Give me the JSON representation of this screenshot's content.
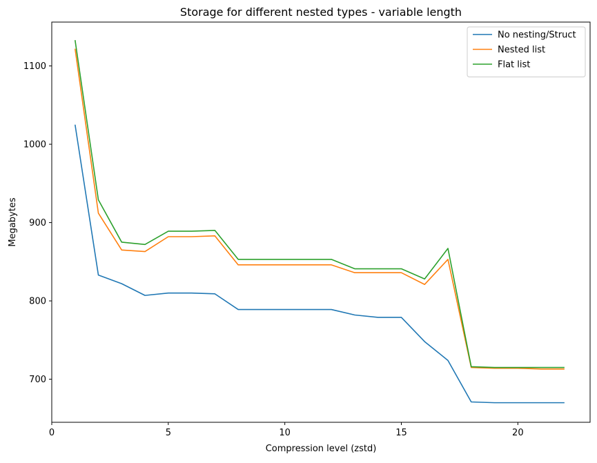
{
  "chart_data": {
    "type": "line",
    "title": "Storage for different nested types - variable length",
    "xlabel": "Compression level (zstd)",
    "ylabel": "Megabytes",
    "xlim": [
      0,
      23.1
    ],
    "ylim": [
      645,
      1156
    ],
    "x_ticks": [
      0,
      5,
      10,
      15,
      20
    ],
    "y_ticks": [
      700,
      800,
      900,
      1000,
      1100
    ],
    "grid": false,
    "legend_position": "top-right",
    "x": [
      1,
      2,
      3,
      4,
      5,
      6,
      7,
      8,
      9,
      10,
      11,
      12,
      13,
      14,
      15,
      16,
      17,
      18,
      19,
      20,
      21,
      22
    ],
    "series": [
      {
        "name": "No nesting/Struct",
        "color": "#1f77b4",
        "values": [
          1025,
          833,
          822,
          807,
          810,
          810,
          809,
          789,
          789,
          789,
          789,
          789,
          782,
          779,
          779,
          748,
          724,
          671,
          670,
          670,
          670,
          670
        ]
      },
      {
        "name": "Nested list",
        "color": "#ff7f0e",
        "values": [
          1122,
          912,
          865,
          863,
          882,
          882,
          883,
          846,
          846,
          846,
          846,
          846,
          836,
          836,
          836,
          821,
          853,
          715,
          714,
          714,
          713,
          713
        ]
      },
      {
        "name": "Flat list",
        "color": "#2ca02c",
        "values": [
          1133,
          929,
          875,
          872,
          889,
          889,
          890,
          853,
          853,
          853,
          853,
          853,
          841,
          841,
          841,
          828,
          867,
          716,
          715,
          715,
          715,
          715
        ]
      }
    ]
  }
}
